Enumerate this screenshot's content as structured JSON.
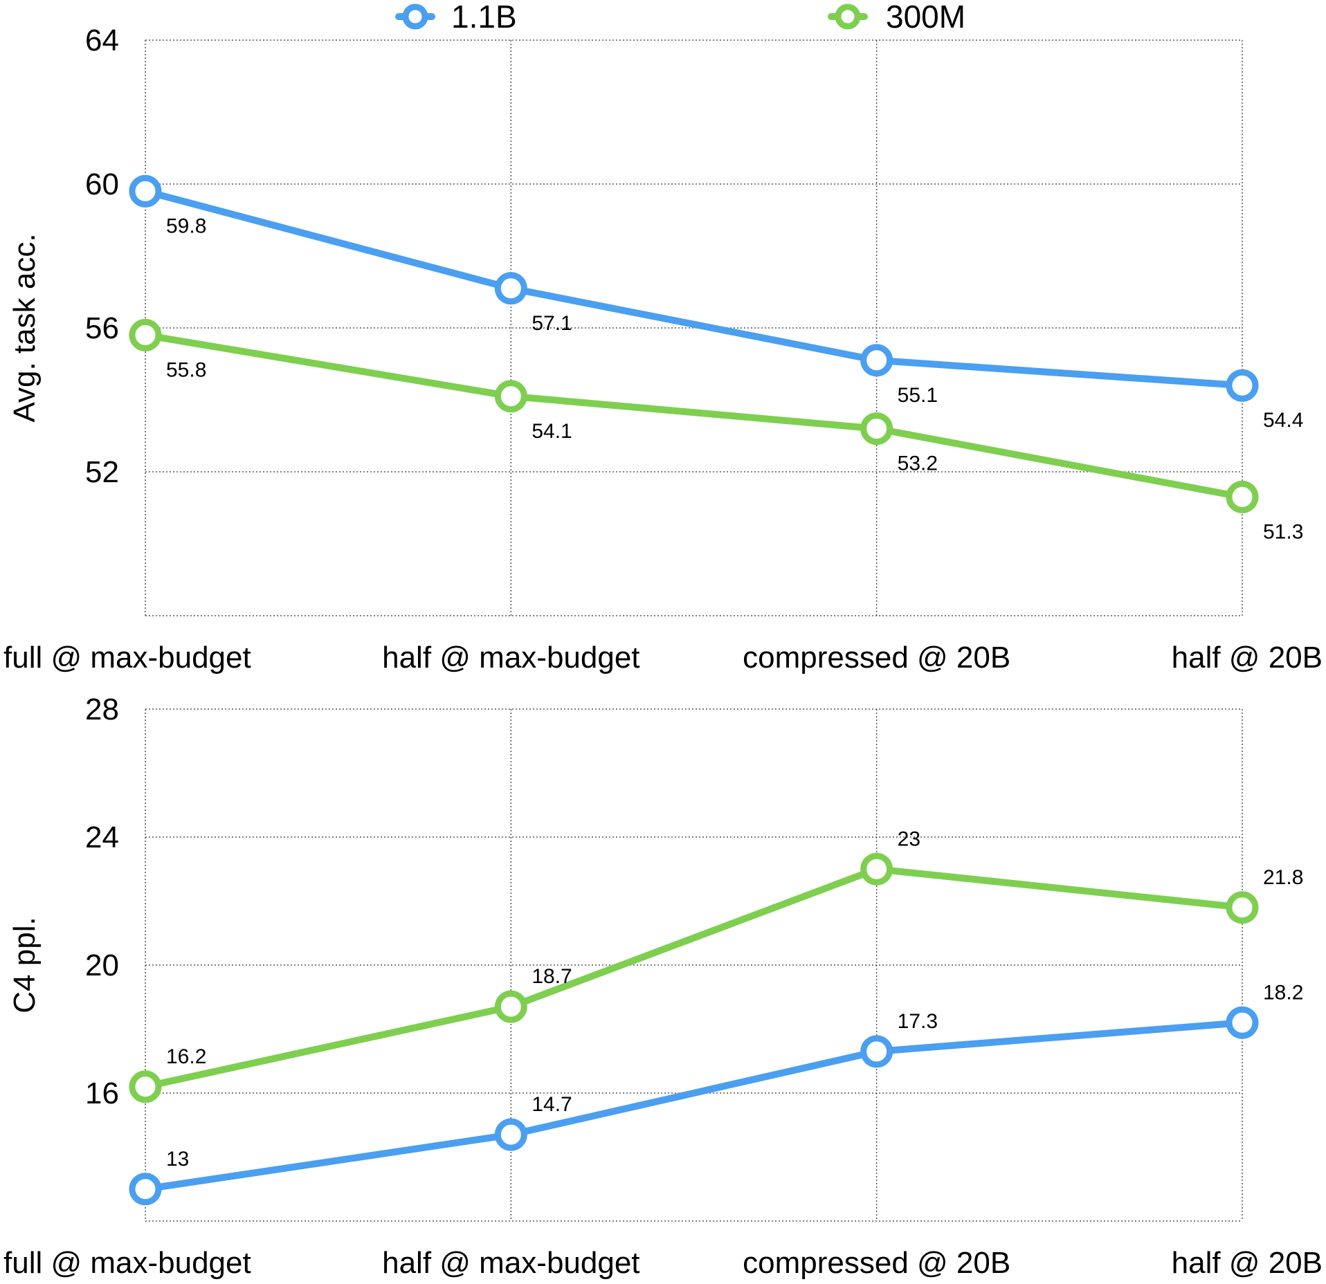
{
  "legend": [
    {
      "name": "1.1B",
      "color": "#4a9ff0"
    },
    {
      "name": "300M",
      "color": "#7ecf4f"
    }
  ],
  "chart_data": [
    {
      "type": "line",
      "title": "",
      "xlabel": "",
      "ylabel": "Avg. task acc.",
      "ylim": [
        48,
        64
      ],
      "yticks": [
        52,
        56,
        60,
        64
      ],
      "grid": true,
      "categories": [
        "full @ max-budget",
        "half @ max-budget",
        "compressed @ 20B",
        "half @ 20B"
      ],
      "series": [
        {
          "name": "1.1B",
          "color": "#4a9ff0",
          "values": [
            59.8,
            57.1,
            55.1,
            54.4
          ],
          "labels": [
            "59.8",
            "57.1",
            "55.1",
            "54.4"
          ]
        },
        {
          "name": "300M",
          "color": "#7ecf4f",
          "values": [
            55.8,
            54.1,
            53.2,
            51.3
          ],
          "labels": [
            "55.8",
            "54.1",
            "53.2",
            "51.3"
          ]
        }
      ]
    },
    {
      "type": "line",
      "title": "",
      "xlabel": "",
      "ylabel": "C4 ppl.",
      "ylim": [
        12,
        28
      ],
      "yticks": [
        16,
        20,
        24,
        28
      ],
      "grid": true,
      "categories": [
        "full @ max-budget",
        "half @ max-budget",
        "compressed @ 20B",
        "half @ 20B"
      ],
      "series": [
        {
          "name": "1.1B",
          "color": "#4a9ff0",
          "values": [
            13,
            14.7,
            17.3,
            18.2
          ],
          "labels": [
            "13",
            "14.7",
            "17.3",
            "18.2"
          ]
        },
        {
          "name": "300M",
          "color": "#7ecf4f",
          "values": [
            16.2,
            18.7,
            23,
            21.8
          ],
          "labels": [
            "16.2",
            "18.7",
            "23",
            "21.8"
          ]
        }
      ]
    }
  ]
}
